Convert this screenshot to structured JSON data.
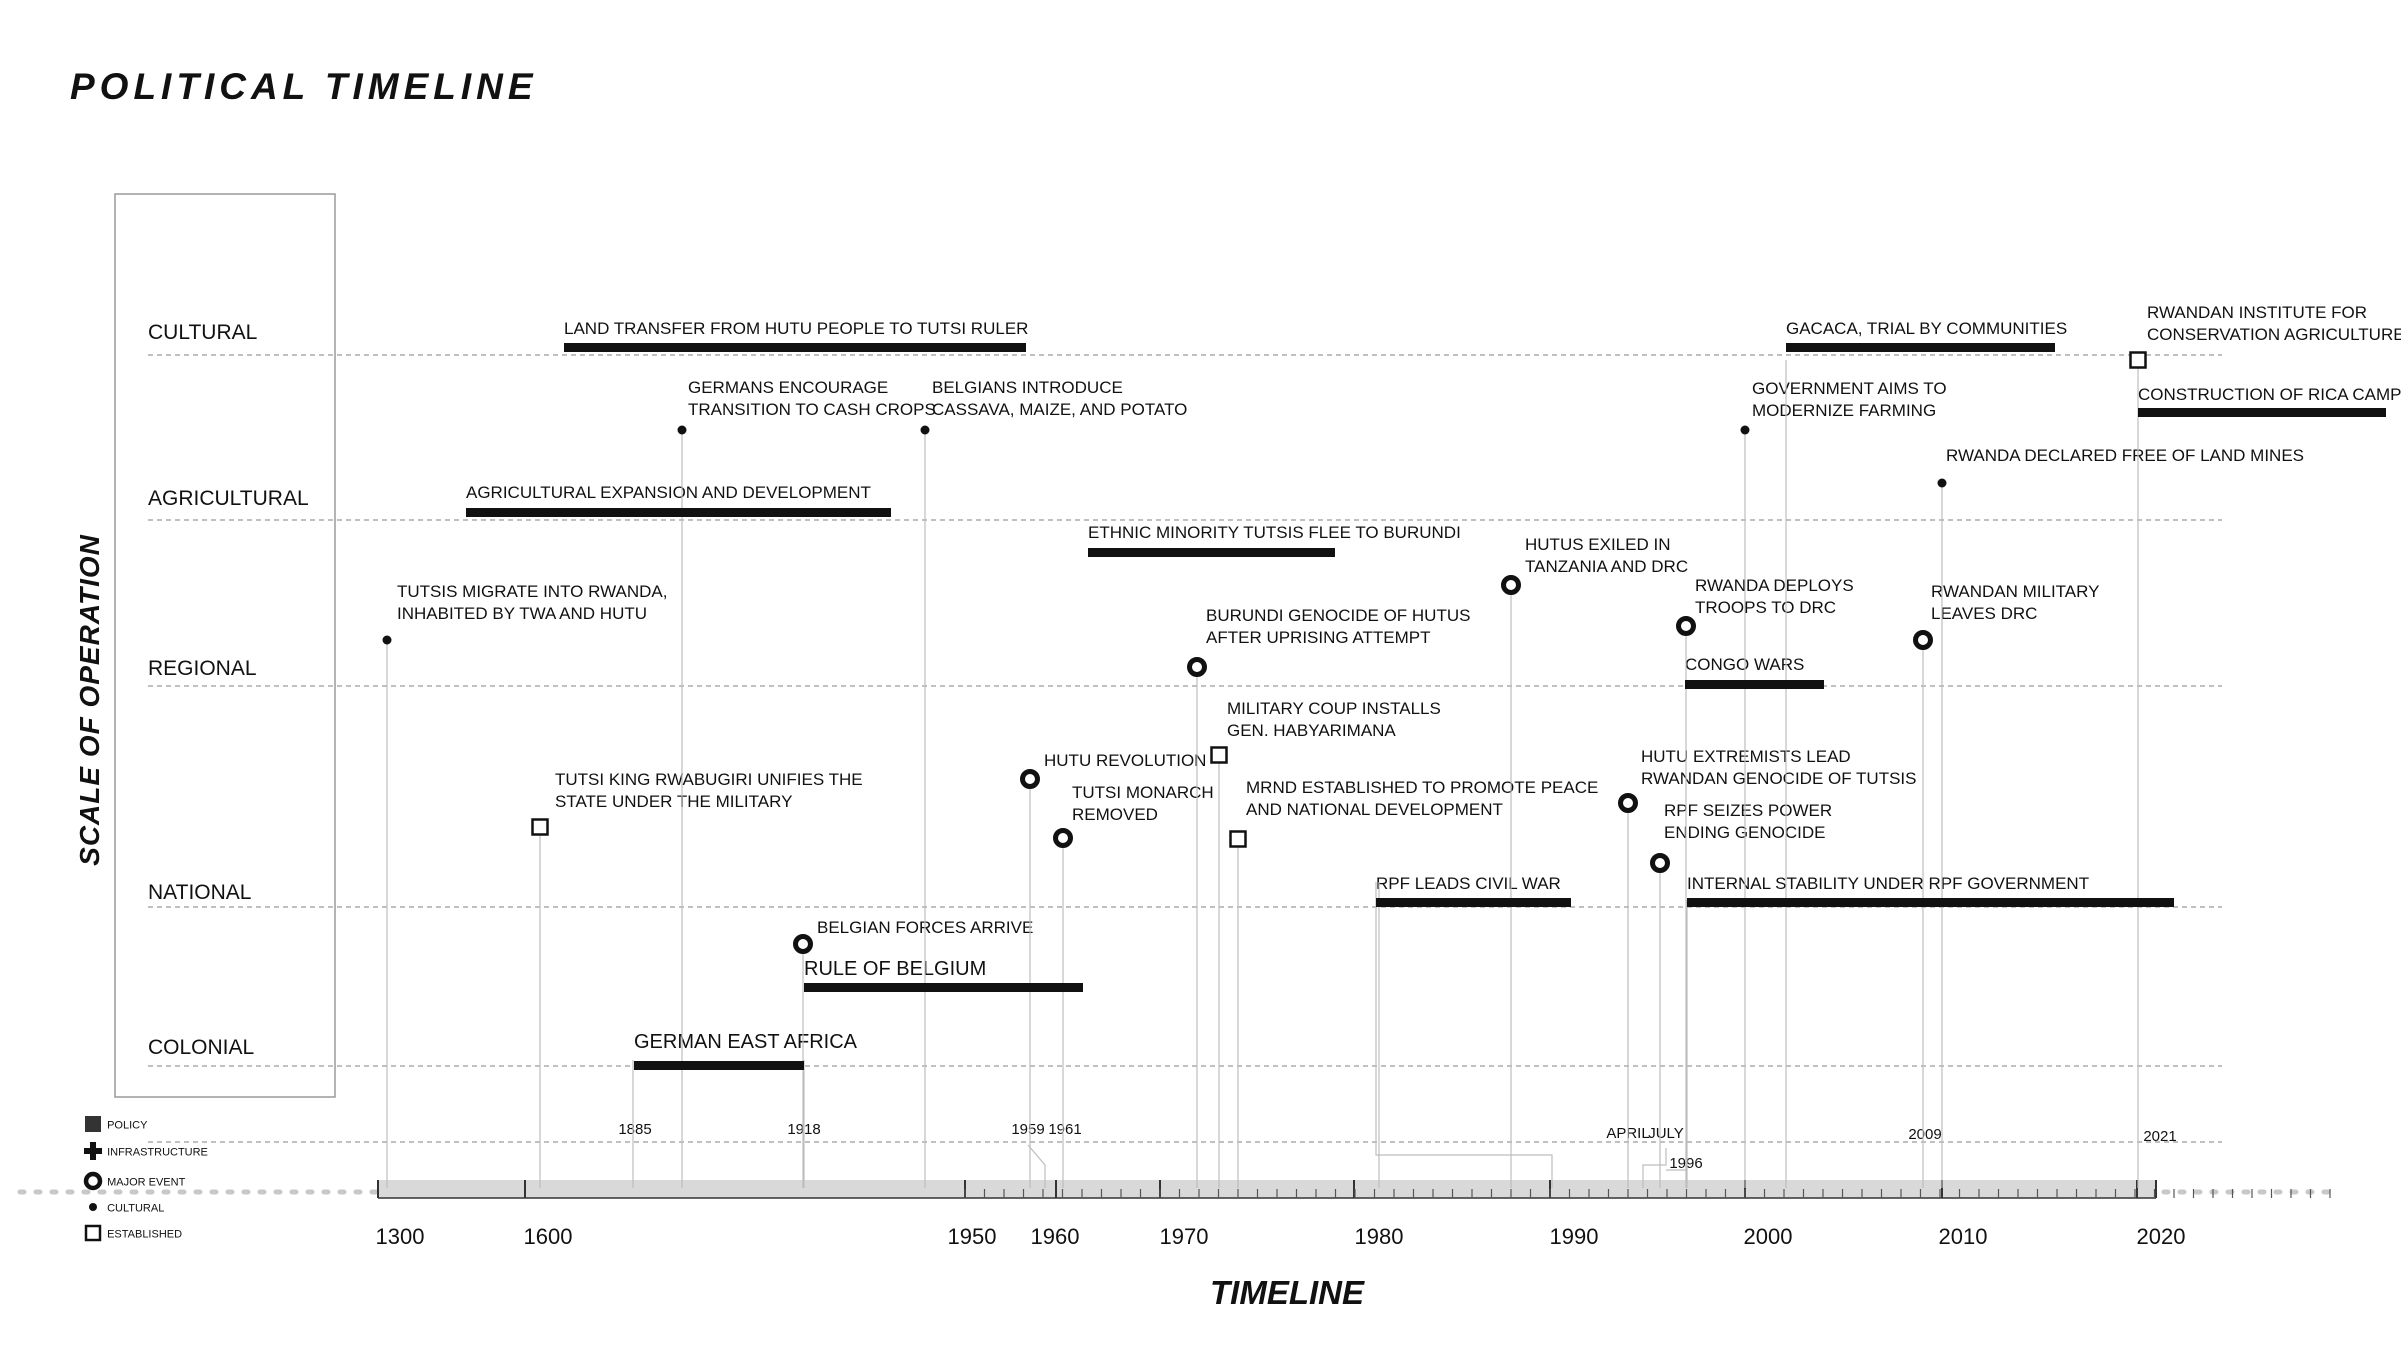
{
  "title": "POLITICAL TIMELINE",
  "y_axis_title": "SCALE OF OPERATION",
  "x_axis_title": "TIMELINE",
  "levels": [
    "CULTURAL",
    "AGRICULTURAL",
    "REGIONAL",
    "NATIONAL",
    "COLONIAL"
  ],
  "legend": [
    {
      "icon": "square-filled",
      "label": "POLICY"
    },
    {
      "icon": "plus",
      "label": "INFRASTRUCTURE"
    },
    {
      "icon": "ring",
      "label": "MAJOR EVENT"
    },
    {
      "icon": "dot",
      "label": "CULTURAL"
    },
    {
      "icon": "square-outline",
      "label": "ESTABLISHED"
    }
  ],
  "axis_years": [
    "1300",
    "1600",
    "1950",
    "1960",
    "1970",
    "1980",
    "1990",
    "2000",
    "2010",
    "2020"
  ],
  "marker_years": [
    "1885",
    "1918",
    "1959",
    "1961",
    "APRIL",
    "JULY",
    "1996",
    "2009",
    "2021"
  ],
  "bars": [
    {
      "label": "LAND TRANSFER FROM HUTU PEOPLE TO TUTSI RULER",
      "level": "CULTURAL"
    },
    {
      "label": "GACACA, TRIAL BY COMMUNITIES",
      "level": "CULTURAL"
    },
    {
      "label": "CONSTRUCTION OF RICA CAMPUS",
      "level": "CULTURAL"
    },
    {
      "label": "AGRICULTURAL EXPANSION AND DEVELOPMENT",
      "level": "AGRICULTURAL"
    },
    {
      "label": "ETHNIC MINORITY TUTSIS FLEE TO BURUNDI",
      "level": "REGIONAL"
    },
    {
      "label": "CONGO WARS",
      "level": "REGIONAL"
    },
    {
      "label": "RPF LEADS CIVIL WAR",
      "level": "NATIONAL"
    },
    {
      "label": "INTERNAL STABILITY UNDER RPF GOVERNMENT",
      "level": "NATIONAL"
    },
    {
      "label": "RULE OF BELGIUM",
      "level": "COLONIAL"
    },
    {
      "label": "GERMAN EAST AFRICA",
      "level": "COLONIAL"
    }
  ],
  "events": [
    {
      "type": "dot",
      "lines": [
        "TUTSIS MIGRATE INTO RWANDA,",
        "INHABITED BY TWA AND HUTU"
      ]
    },
    {
      "type": "dot",
      "lines": [
        "GERMANS ENCOURAGE",
        "TRANSITION TO CASH CROPS"
      ]
    },
    {
      "type": "dot",
      "lines": [
        "BELGIANS INTRODUCE",
        "CASSAVA, MAIZE, AND POTATO"
      ]
    },
    {
      "type": "dot",
      "lines": [
        "GOVERNMENT AIMS TO",
        "MODERNIZE FARMING"
      ]
    },
    {
      "type": "dot",
      "lines": [
        "RWANDA DECLARED FREE OF LAND MINES"
      ]
    },
    {
      "type": "square-outline",
      "lines": [
        "RWANDAN INSTITUTE FOR",
        "CONSERVATION AGRICULTURE"
      ]
    },
    {
      "type": "square-outline",
      "lines": [
        "TUTSI KING  RWABUGIRI UNIFIES THE",
        "STATE UNDER THE MILITARY"
      ]
    },
    {
      "type": "square-outline",
      "lines": [
        "MILITARY COUP INSTALLS",
        "GEN. HABYARIMANA"
      ]
    },
    {
      "type": "square-outline",
      "lines": [
        "MRND ESTABLISHED TO PROMOTE PEACE",
        "AND NATIONAL DEVELOPMENT"
      ]
    },
    {
      "type": "ring",
      "lines": [
        "HUTUS EXILED IN",
        "TANZANIA AND DRC"
      ]
    },
    {
      "type": "ring",
      "lines": [
        "RWANDA DEPLOYS",
        "TROOPS TO DRC"
      ]
    },
    {
      "type": "ring",
      "lines": [
        "RWANDAN MILITARY",
        "LEAVES DRC"
      ]
    },
    {
      "type": "ring",
      "lines": [
        "BURUNDI GENOCIDE OF HUTUS",
        "AFTER UPRISING ATTEMPT"
      ]
    },
    {
      "type": "ring",
      "lines": [
        "HUTU REVOLUTION"
      ]
    },
    {
      "type": "ring",
      "lines": [
        "TUTSI MONARCH",
        "REMOVED"
      ]
    },
    {
      "type": "ring",
      "lines": [
        "HUTU EXTREMISTS LEAD",
        "RWANDAN GENOCIDE OF TUTSIS"
      ]
    },
    {
      "type": "ring",
      "lines": [
        "RPF SEIZES POWER",
        "ENDING GENOCIDE"
      ]
    },
    {
      "type": "ring",
      "lines": [
        "BELGIAN FORCES ARRIVE"
      ]
    }
  ]
}
